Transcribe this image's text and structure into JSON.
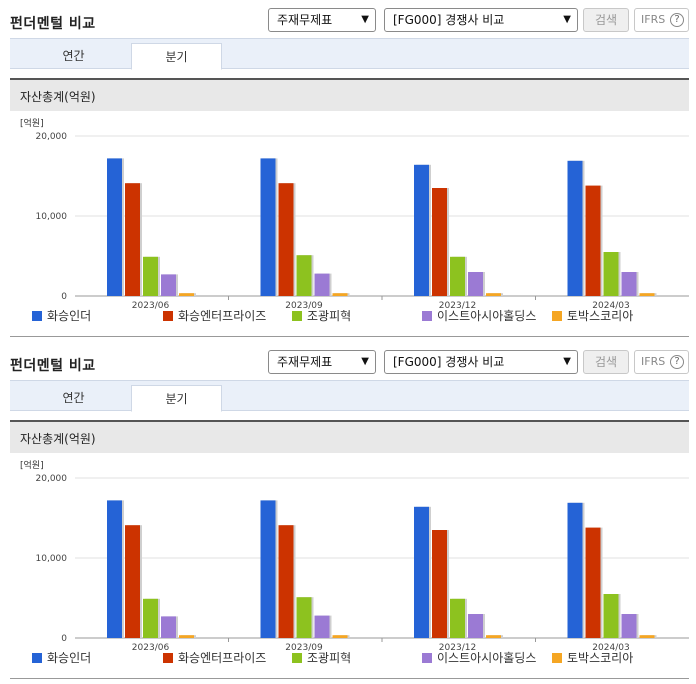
{
  "panels": [
    {
      "title": "펀더멘털 비교",
      "theme_select": "주재무제표",
      "compare_select": "[FG000] 경쟁사 비교",
      "search_button": "검색",
      "ifrs_button": "IFRS",
      "ifrs_help": "?",
      "tabs": [
        "연간",
        "분기"
      ],
      "active_tab": 1,
      "chart_title": "자산총계(억원)"
    },
    {
      "title": "펀더멘털 비교",
      "theme_select": "주재무제표",
      "compare_select": "[FG000] 경쟁사 비교",
      "search_button": "검색",
      "ifrs_button": "IFRS",
      "ifrs_help": "?",
      "tabs": [
        "연간",
        "분기"
      ],
      "active_tab": 1,
      "chart_title": "자산총계(억원)"
    }
  ],
  "chart_data": [
    {
      "type": "bar",
      "title": "자산총계(억원)",
      "unit_label": "[억원]",
      "categories": [
        "2023/06",
        "2023/09",
        "2023/12",
        "2024/03"
      ],
      "ylim": [
        0,
        20000
      ],
      "yticks": [
        0,
        10000,
        20000
      ],
      "ytick_labels": [
        "0",
        "10,000",
        "20,000"
      ],
      "grid": true,
      "legend_position": "bottom",
      "series": [
        {
          "name": "화승인더",
          "color": "#2563d6",
          "values": [
            17200,
            17200,
            16400,
            16900
          ]
        },
        {
          "name": "화승엔터프라이즈",
          "color": "#cc3300",
          "values": [
            14100,
            14100,
            13500,
            13800
          ]
        },
        {
          "name": "조광피혁",
          "color": "#8dc21f",
          "values": [
            4900,
            5100,
            4900,
            5500
          ]
        },
        {
          "name": "이스트아시아홀딩스",
          "color": "#9b7ad4",
          "values": [
            2700,
            2800,
            3000,
            3000
          ]
        },
        {
          "name": "토박스코리아",
          "color": "#f5a623",
          "values": [
            350,
            350,
            350,
            350
          ]
        }
      ]
    },
    {
      "type": "bar",
      "title": "자산총계(억원)",
      "unit_label": "[억원]",
      "categories": [
        "2023/06",
        "2023/09",
        "2023/12",
        "2024/03"
      ],
      "ylim": [
        0,
        20000
      ],
      "yticks": [
        0,
        10000,
        20000
      ],
      "ytick_labels": [
        "0",
        "10,000",
        "20,000"
      ],
      "grid": true,
      "legend_position": "bottom",
      "series": [
        {
          "name": "화승인더",
          "color": "#2563d6",
          "values": [
            17200,
            17200,
            16400,
            16900
          ]
        },
        {
          "name": "화승엔터프라이즈",
          "color": "#cc3300",
          "values": [
            14100,
            14100,
            13500,
            13800
          ]
        },
        {
          "name": "조광피혁",
          "color": "#8dc21f",
          "values": [
            4900,
            5100,
            4900,
            5500
          ]
        },
        {
          "name": "이스트아시아홀딩스",
          "color": "#9b7ad4",
          "values": [
            2700,
            2800,
            3000,
            3000
          ]
        },
        {
          "name": "토박스코리아",
          "color": "#f5a623",
          "values": [
            350,
            350,
            350,
            350
          ]
        }
      ]
    }
  ]
}
